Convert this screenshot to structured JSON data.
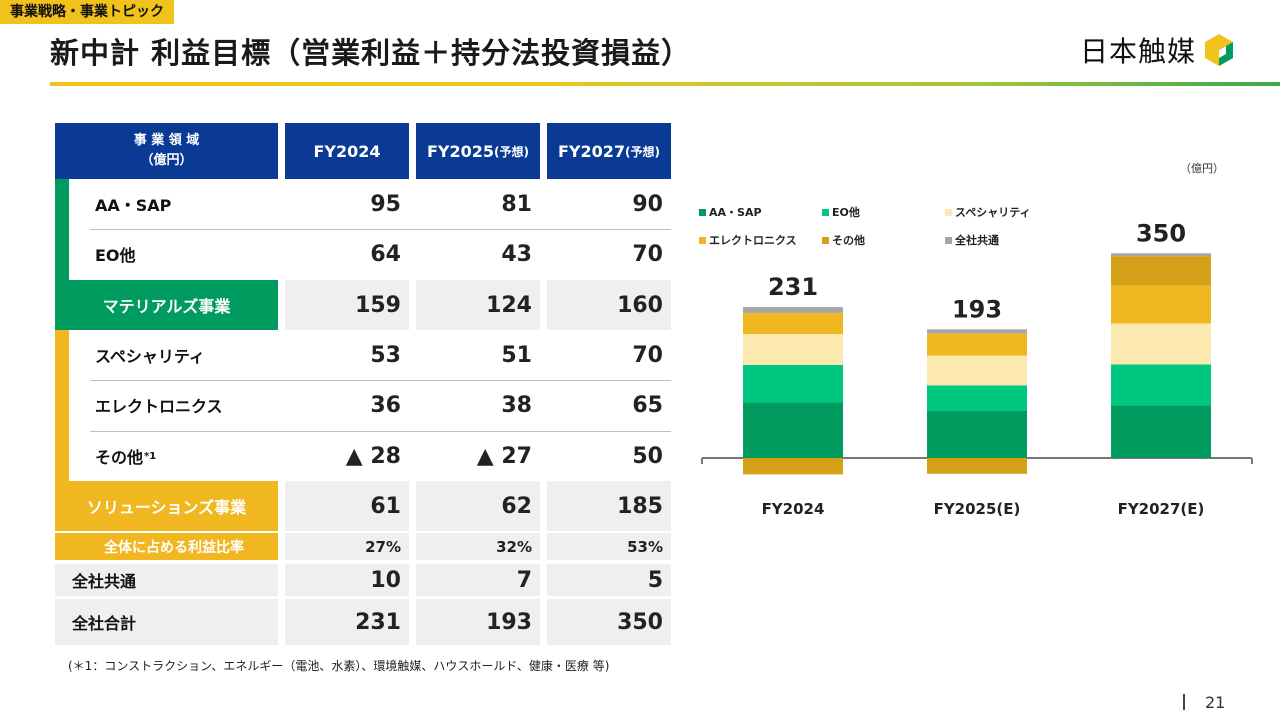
{
  "section_tag": "事業戦略・事業トピック",
  "title": "新中計 利益目標（営業利益＋持分法投資損益）",
  "logo": {
    "text": "日本触媒",
    "colors": [
      "#f1c21b",
      "#009b5e"
    ]
  },
  "table": {
    "header_label": [
      "事 業 領 域",
      "（億円）"
    ],
    "columns": [
      {
        "main": "FY2024",
        "suffix": ""
      },
      {
        "main": "FY2025",
        "suffix": "(予想)"
      },
      {
        "main": "FY2027",
        "suffix": "(予想)"
      }
    ],
    "rows": {
      "aa_sap": {
        "label": "AA・SAP",
        "values": [
          "95",
          "81",
          "90"
        ]
      },
      "eo": {
        "label": "EO他",
        "values": [
          "64",
          "43",
          "70"
        ]
      },
      "materials": {
        "label": "マテリアルズ事業",
        "values": [
          "159",
          "124",
          "160"
        ]
      },
      "specialty": {
        "label": "スペシャリティ",
        "values": [
          "53",
          "51",
          "70"
        ]
      },
      "electronics": {
        "label": "エレクトロニクス",
        "values": [
          "36",
          "38",
          "65"
        ]
      },
      "others": {
        "label": "その他",
        "note": "*1",
        "values": [
          "▲ 28",
          "▲ 27",
          "50"
        ]
      },
      "solutions": {
        "label": "ソリューションズ事業",
        "values": [
          "61",
          "62",
          "185"
        ]
      },
      "share": {
        "label": "全体に占める利益比率",
        "values": [
          "27%",
          "32%",
          "53%"
        ]
      },
      "corporate": {
        "label": "全社共通",
        "values": [
          "10",
          "7",
          "5"
        ]
      },
      "total": {
        "label": "全社合計",
        "values": [
          "231",
          "193",
          "350"
        ]
      }
    }
  },
  "footnote": "(＊1：コンストラクション、エネルギー（電池、水素）、環境触媒、ハウスホールド、健康・医療 等)",
  "page_number": "21",
  "chart_data": {
    "type": "bar",
    "stacked": true,
    "unit": "（億円）",
    "categories": [
      "FY2024",
      "FY2025(E)",
      "FY2027(E)"
    ],
    "totals": [
      "231",
      "193",
      "350"
    ],
    "series": [
      {
        "name": "AA・SAP",
        "color": "#009b5e",
        "values": [
          95,
          81,
          90
        ]
      },
      {
        "name": "EO他",
        "color": "#00c77f",
        "values": [
          64,
          43,
          70
        ]
      },
      {
        "name": "スペシャリティ",
        "color": "#fbe9b0",
        "values": [
          53,
          51,
          70
        ]
      },
      {
        "name": "エレクトロニクス",
        "color": "#f1b721",
        "values": [
          36,
          38,
          65
        ]
      },
      {
        "name": "その他",
        "color": "#d4a017",
        "values": [
          -28,
          -27,
          50
        ]
      },
      {
        "name": "全社共通",
        "color": "#a6a6a6",
        "values": [
          10,
          7,
          5
        ]
      }
    ],
    "legend_position": "top-left"
  }
}
